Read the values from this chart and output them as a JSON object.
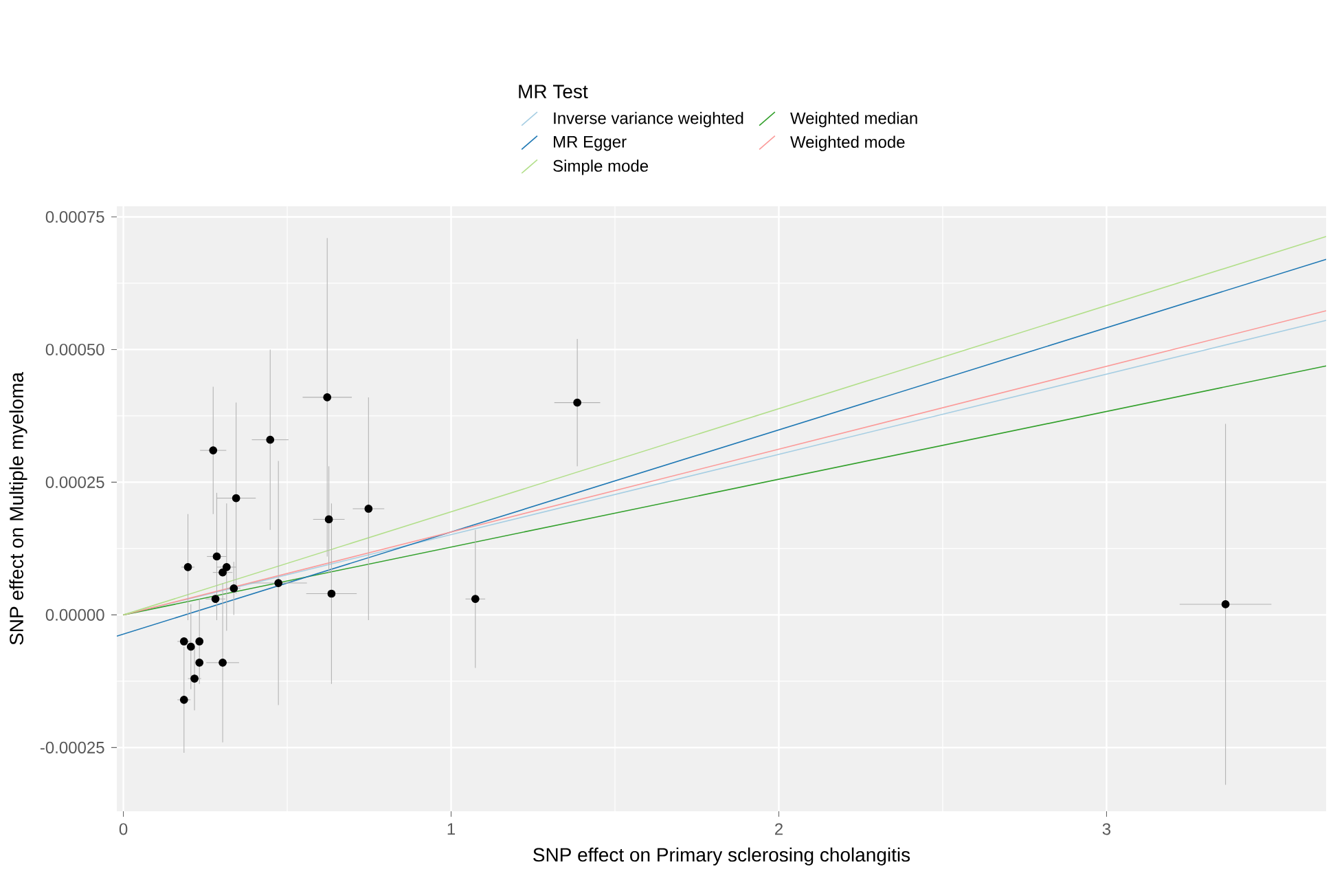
{
  "chart_data": {
    "type": "scatter",
    "xlabel": "SNP effect on Primary sclerosing cholangitis",
    "ylabel": "SNP effect on Multiple myeloma",
    "legend_title": "MR Test",
    "xlim": [
      -0.02,
      3.67
    ],
    "ylim": [
      -0.00037,
      0.00077
    ],
    "xticks": [
      0,
      1,
      2,
      3
    ],
    "yticks": [
      {
        "value": -0.00025,
        "label": "-0.00025"
      },
      {
        "value": 0,
        "label": "0.00000"
      },
      {
        "value": 0.00025,
        "label": "0.00025"
      },
      {
        "value": 0.0005,
        "label": "0.00050"
      },
      {
        "value": 0.00075,
        "label": "0.00075"
      }
    ],
    "grid": true,
    "legend": "top",
    "series": [
      {
        "color": "#000000",
        "marker": "circle",
        "x": [
          0.185,
          0.185,
          0.206,
          0.232,
          0.232,
          0.217,
          0.303,
          0.197,
          0.285,
          0.315,
          0.303,
          0.337,
          0.281,
          0.274,
          0.344,
          0.448,
          0.473,
          0.622,
          0.627,
          0.635,
          0.748,
          1.074,
          1.385,
          3.363
        ],
        "values": [
          -0.00016,
          -5e-05,
          -6e-05,
          -5e-05,
          -9e-05,
          -0.00012,
          -9e-05,
          9e-05,
          0.00011,
          9e-05,
          8e-05,
          5e-05,
          3e-05,
          0.00031,
          0.00022,
          0.00033,
          6e-05,
          0.00041,
          0.00018,
          4e-05,
          0.0002,
          3e-05,
          0.0004,
          2e-05
        ],
        "errors": [
          0.0001,
          null,
          8e-05,
          8e-05,
          null,
          6e-05,
          0.00015,
          0.0001,
          0.00012,
          0.00012,
          null,
          5e-05,
          null,
          0.00012,
          0.00018,
          0.00017,
          0.00023,
          0.0003,
          0.0001,
          0.00017,
          0.00021,
          0.00013,
          0.00012,
          0.00034
        ],
        "xerrors": [
          0.02,
          0.02,
          null,
          null,
          null,
          0.02,
          0.05,
          0.02,
          0.03,
          0.03,
          0.03,
          0.02,
          0.03,
          0.04,
          0.06,
          0.056,
          0.087,
          0.075,
          0.048,
          0.077,
          0.048,
          0.03,
          0.07,
          0.14
        ]
      },
      {
        "type": "line",
        "name": "Inverse variance weighted",
        "color": "#a6cee3",
        "marker": "none",
        "x": [
          0,
          3.67
        ],
        "values": [
          0,
          0.000555
        ]
      },
      {
        "type": "line",
        "name": "MR Egger",
        "color": "#1f78b4",
        "marker": "none",
        "x": [
          -0.02,
          3.67
        ],
        "values": [
          -4e-05,
          0.00067
        ]
      },
      {
        "type": "line",
        "name": "Simple mode",
        "color": "#b2df8a",
        "marker": "none",
        "x": [
          0,
          3.67
        ],
        "values": [
          0,
          0.000713
        ]
      },
      {
        "type": "line",
        "name": "Weighted median",
        "color": "#33a02c",
        "marker": "none",
        "x": [
          0,
          3.67
        ],
        "values": [
          0,
          0.000469
        ]
      },
      {
        "type": "line",
        "name": "Weighted mode",
        "color": "#fb9a99",
        "marker": "none",
        "x": [
          0,
          3.67
        ],
        "values": [
          0,
          0.000573
        ]
      }
    ]
  }
}
